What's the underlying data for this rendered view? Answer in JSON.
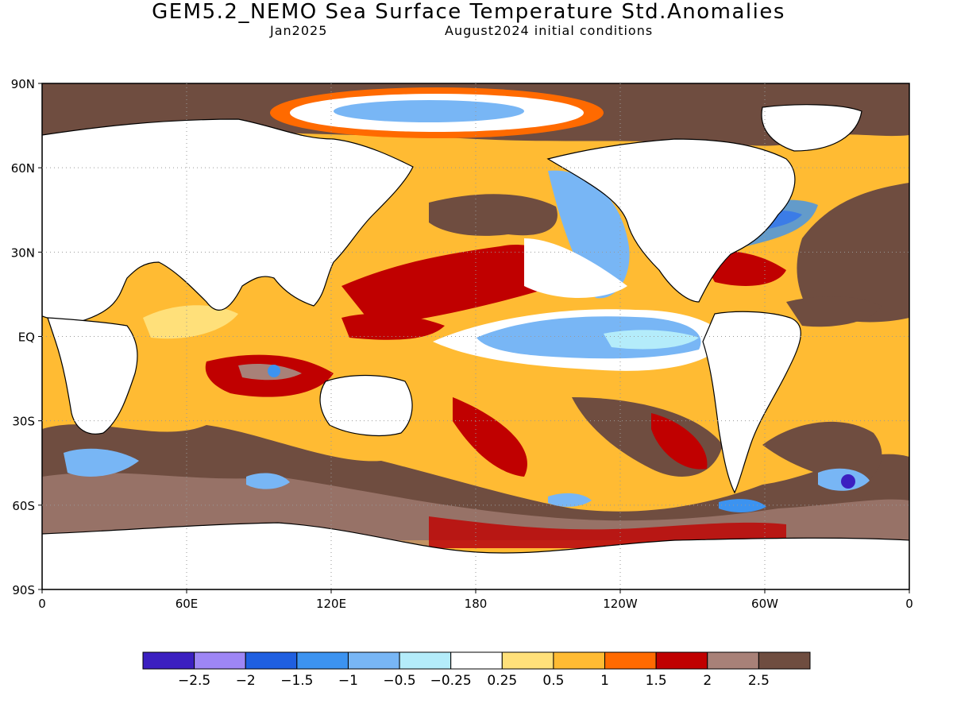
{
  "title": "GEM5.2_NEMO Sea Surface Temperature Std.Anomalies",
  "forecast_month": "Jan2025",
  "init_conditions": "August2024 initial conditions",
  "lat_labels": [
    "90N",
    "60N",
    "30N",
    "EQ",
    "30S",
    "60S",
    "90S"
  ],
  "lon_labels": [
    "0",
    "60E",
    "120E",
    "180",
    "120W",
    "60W",
    "0"
  ],
  "colorbar": {
    "colors": [
      "#3b1fc0",
      "#9e86f5",
      "#1f5fe0",
      "#3c93f0",
      "#78b6f5",
      "#b4ecfa",
      "#ffffff",
      "#ffe07a",
      "#ffbb33",
      "#ff6a00",
      "#c00000",
      "#a88178",
      "#6f4d40"
    ],
    "labels": [
      "−2.5",
      "−2",
      "−1.5",
      "−1",
      "−0.5",
      "−0.25",
      "0.25",
      "0.5",
      "1",
      "1.5",
      "2",
      "2.5"
    ]
  },
  "colors": {
    "ocean_base": "#ffbb33",
    "land": "#ffffff",
    "coast": "#000000"
  }
}
